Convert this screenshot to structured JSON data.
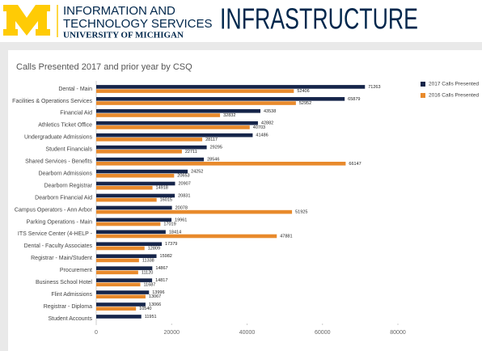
{
  "header": {
    "line1": "INFORMATION AND",
    "line2": "TECHNOLOGY SERVICES",
    "line3": "UNIVERSITY OF MICHIGAN",
    "section": "INFRASTRUCTURE"
  },
  "chart_data": {
    "type": "hbar",
    "title": "Calls Presented 2017 and prior year by CSQ",
    "categories": [
      "Dental - Main",
      "Facilities & Operations Services",
      "Financial Aid",
      "Athletics Ticket Office",
      "Undergraduate Admissions",
      "Student Financials",
      "Shared Services - Benefits",
      "Dearborn Admissions",
      "Dearborn Registrar",
      "Dearborn Financial Aid",
      "Campus Operators - Ann Arbor",
      "Parking Operations - Main",
      "ITS Service Center (4-HELP -",
      "Dental - Faculty Associates",
      "Registrar - Main/Student",
      "Procurement",
      "Business School Hotel",
      "Flint Admissions",
      "Registrar - Diploma",
      "Student Accounts"
    ],
    "series": [
      {
        "name": "2017 Calls Presented",
        "color": "#16254a",
        "values": [
          71263,
          65879,
          43538,
          42882,
          41486,
          29295,
          28546,
          24252,
          20907,
          20831,
          20078,
          19961,
          18414,
          17379,
          15982,
          14867,
          14817,
          13996,
          13066,
          11951
        ]
      },
      {
        "name": "2016 Calls Presented",
        "color": "#e88a2c",
        "values": [
          52406,
          52952,
          32832,
          40703,
          28117,
          22711,
          66147,
          20653,
          14918,
          16015,
          51925,
          17019,
          47881,
          12809,
          11338,
          11120,
          11687,
          13067,
          10540,
          null
        ]
      }
    ],
    "xlim": [
      0,
      80000
    ],
    "xticks": [
      0,
      20000,
      40000,
      60000,
      80000
    ],
    "grid": false,
    "legend": "top-right"
  }
}
